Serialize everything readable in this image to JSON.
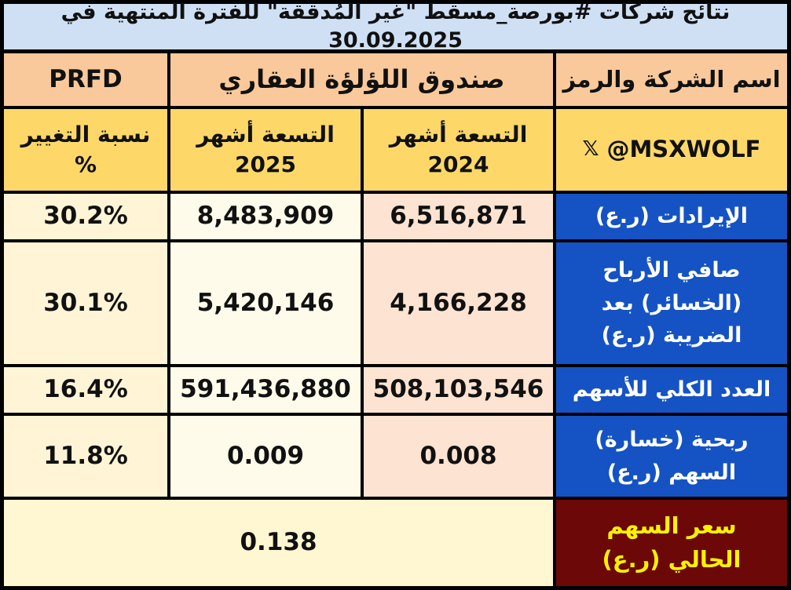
{
  "title": "نتائج شركات #بورصة_مسقط \"غير المُدققة\" للفترة المنتهية في 30.09.2025",
  "header": {
    "symbol": "PRFD",
    "company": "صندوق اللؤلؤة العقاري",
    "company_label": "اسم الشركة والرمز"
  },
  "columns": {
    "change_line1": "نسبة التغيير",
    "change_line2": "%",
    "current_line1": "التسعة أشهر",
    "current_line2": "2025",
    "previous_line1": "التسعة أشهر",
    "previous_line2": "2024",
    "handle": "@MSXWOLF",
    "handle_icon": "x-logo-icon"
  },
  "rows": [
    {
      "label": "الإيرادات (ر.ع)",
      "prev": "6,516,871",
      "curr": "8,483,909",
      "change": "30.2%"
    },
    {
      "label": "صافي الأرباح (الخسائر) بعد الضريبة (ر.ع)",
      "prev": "4,166,228",
      "curr": "5,420,146",
      "change": "30.1%"
    },
    {
      "label": "العدد الكلي للأسهم",
      "prev": "508,103,546",
      "curr": "591,436,880",
      "change": "16.4%"
    },
    {
      "label": "ربحية (خسارة) السهم (ر.ع)",
      "prev": "0.008",
      "curr": "0.009",
      "change": "11.8%"
    }
  ],
  "price": {
    "label": "سعر السهم الحالي (ر.ع)",
    "value": "0.138"
  },
  "colors": {
    "title_bg": "#cfe0f5",
    "header_bg": "#f9c99b",
    "subheader_bg": "#fdd869",
    "label_bg": "#1553c4",
    "price_label_bg": "#6c0808",
    "price_label_text": "#fff200"
  }
}
